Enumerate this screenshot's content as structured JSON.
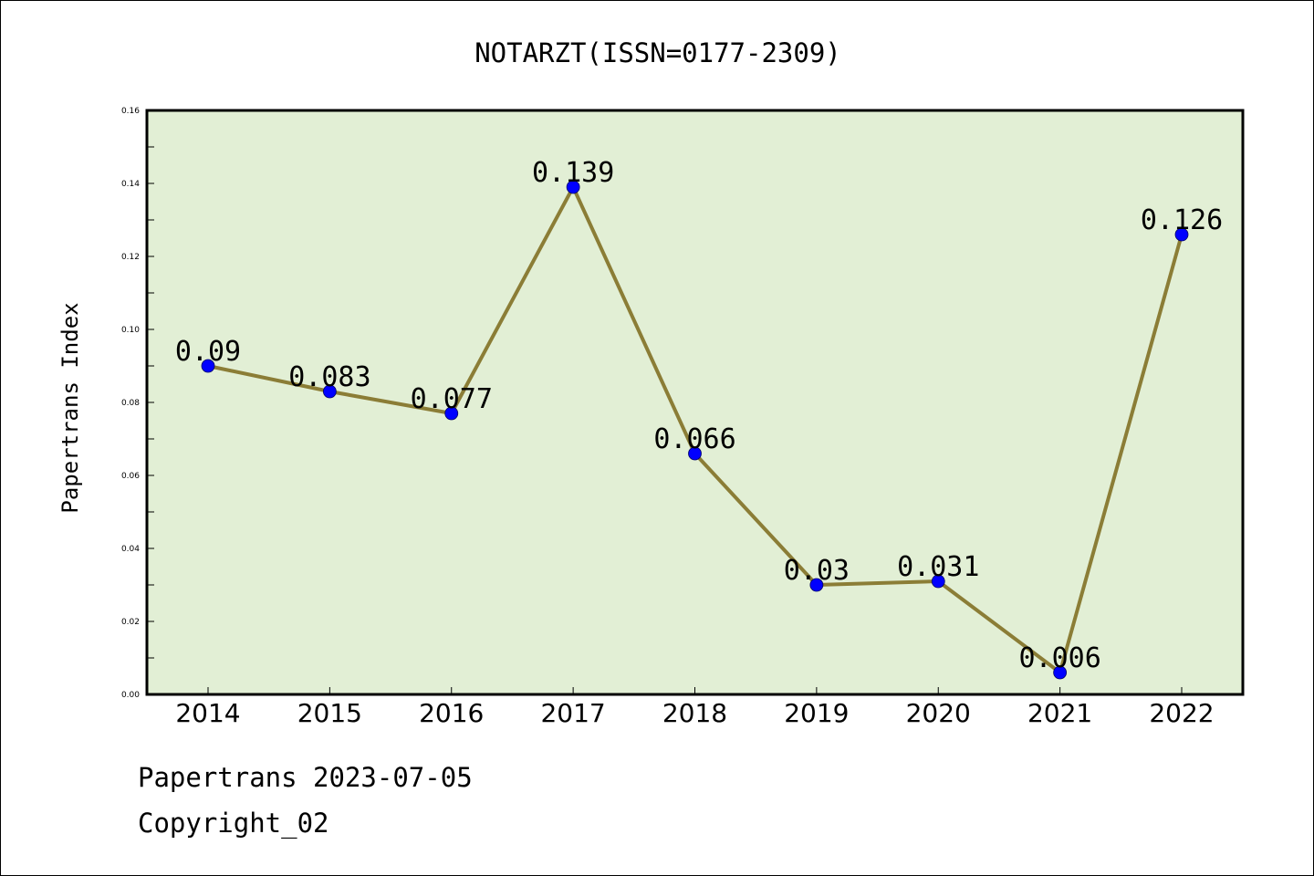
{
  "footer": {
    "date_line": "Papertrans 2023-07-05",
    "copyright_line": "Copyright_02"
  },
  "colors": {
    "plot_background": "#e2efd5",
    "line": "#8b7d36",
    "marker": "#0000ff",
    "axes": "#000000"
  },
  "chart_data": {
    "type": "line",
    "title": "NOTARZT(ISSN=0177-2309)",
    "xlabel": "",
    "ylabel": "Papertrans Index",
    "categories": [
      "2014",
      "2015",
      "2016",
      "2017",
      "2018",
      "2019",
      "2020",
      "2021",
      "2022"
    ],
    "series": [
      {
        "values": [
          0.09,
          0.083,
          0.077,
          0.139,
          0.066,
          0.03,
          0.031,
          0.006,
          0.126
        ],
        "labels": [
          "0.09",
          "0.083",
          "0.077",
          "0.139",
          "0.066",
          "0.03",
          "0.031",
          "0.006",
          "0.126"
        ]
      }
    ],
    "ylim": [
      0,
      0.16
    ],
    "yticks": [
      "0.00",
      "0.02",
      "0.04",
      "0.06",
      "0.08",
      "0.10",
      "0.12",
      "0.14",
      "0.16"
    ],
    "grid": false,
    "legend": "none"
  }
}
